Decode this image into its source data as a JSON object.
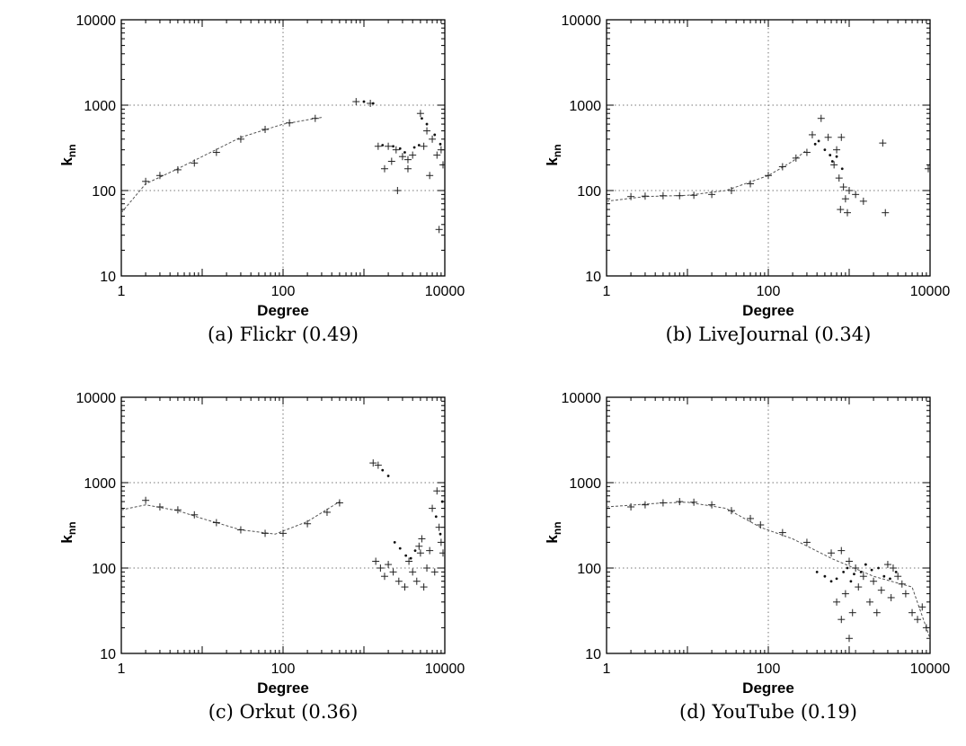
{
  "chart_data": [
    {
      "type": "scatter",
      "caption": "(a) Flickr (0.49)",
      "xlabel": "Degree",
      "ylabel_main": "k",
      "ylabel_sub": "nn",
      "xscale": "log",
      "yscale": "log",
      "xlim": [
        1,
        10000
      ],
      "ylim": [
        10,
        10000
      ],
      "xticks": [
        "1",
        "100",
        "10000"
      ],
      "yticks": [
        "10",
        "100",
        "1000",
        "10000"
      ],
      "grid": true,
      "trend": [
        [
          1,
          55
        ],
        [
          2,
          120
        ],
        [
          5,
          180
        ],
        [
          10,
          250
        ],
        [
          30,
          420
        ],
        [
          100,
          600
        ],
        [
          300,
          720
        ]
      ],
      "series": [
        {
          "marker": "plus",
          "points": [
            [
              2,
              128
            ],
            [
              3,
              150
            ],
            [
              5,
              175
            ],
            [
              8,
              210
            ],
            [
              15,
              280
            ],
            [
              30,
              400
            ],
            [
              60,
              520
            ],
            [
              120,
              620
            ],
            [
              250,
              700
            ],
            [
              800,
              1100
            ],
            [
              1200,
              1050
            ],
            [
              1500,
              330
            ],
            [
              2000,
              330
            ],
            [
              2500,
              300
            ],
            [
              3000,
              250
            ],
            [
              3500,
              230
            ],
            [
              1800,
              180
            ],
            [
              2200,
              220
            ],
            [
              2600,
              100
            ],
            [
              3500,
              180
            ],
            [
              5000,
              800
            ],
            [
              6000,
              500
            ],
            [
              7000,
              400
            ],
            [
              8000,
              260
            ],
            [
              9000,
              300
            ],
            [
              9500,
              200
            ],
            [
              8500,
              35
            ],
            [
              6500,
              150
            ],
            [
              4000,
              260
            ],
            [
              5500,
              330
            ]
          ]
        },
        {
          "marker": "dot",
          "points": [
            [
              1000,
              1100
            ],
            [
              1300,
              1050
            ],
            [
              1700,
              340
            ],
            [
              2300,
              330
            ],
            [
              2800,
              310
            ],
            [
              3200,
              280
            ],
            [
              4200,
              320
            ],
            [
              4800,
              340
            ],
            [
              5200,
              700
            ],
            [
              6000,
              600
            ],
            [
              7500,
              450
            ],
            [
              8800,
              350
            ]
          ]
        }
      ]
    },
    {
      "type": "scatter",
      "caption": "(b) LiveJournal (0.34)",
      "xlabel": "Degree",
      "ylabel_main": "k",
      "ylabel_sub": "nn",
      "xscale": "log",
      "yscale": "log",
      "xlim": [
        1,
        10000
      ],
      "ylim": [
        10,
        10000
      ],
      "xticks": [
        "1",
        "100",
        "10000"
      ],
      "yticks": [
        "10",
        "100",
        "1000",
        "10000"
      ],
      "grid": true,
      "trend": [
        [
          1,
          75
        ],
        [
          3,
          85
        ],
        [
          10,
          88
        ],
        [
          30,
          100
        ],
        [
          100,
          150
        ],
        [
          200,
          220
        ],
        [
          300,
          300
        ]
      ],
      "series": [
        {
          "marker": "plus",
          "points": [
            [
              2,
              85
            ],
            [
              3,
              86
            ],
            [
              5,
              87
            ],
            [
              8,
              87
            ],
            [
              12,
              88
            ],
            [
              20,
              90
            ],
            [
              35,
              100
            ],
            [
              60,
              120
            ],
            [
              100,
              150
            ],
            [
              150,
              190
            ],
            [
              220,
              240
            ],
            [
              300,
              280
            ],
            [
              350,
              450
            ],
            [
              450,
              700
            ],
            [
              550,
              420
            ],
            [
              650,
              200
            ],
            [
              700,
              300
            ],
            [
              800,
              420
            ],
            [
              750,
              140
            ],
            [
              850,
              110
            ],
            [
              900,
              80
            ],
            [
              1000,
              100
            ],
            [
              1200,
              90
            ],
            [
              780,
              60
            ],
            [
              950,
              55
            ],
            [
              1500,
              75
            ],
            [
              2600,
              360
            ],
            [
              2800,
              55
            ],
            [
              9500,
              180
            ]
          ]
        },
        {
          "marker": "dot",
          "points": [
            [
              380,
              350
            ],
            [
              420,
              380
            ],
            [
              500,
              300
            ],
            [
              580,
              260
            ],
            [
              620,
              220
            ],
            [
              700,
              250
            ],
            [
              820,
              180
            ]
          ]
        }
      ]
    },
    {
      "type": "scatter",
      "caption": "(c) Orkut (0.36)",
      "xlabel": "Degree",
      "ylabel_main": "k",
      "ylabel_sub": "nn",
      "xscale": "log",
      "yscale": "log",
      "xlim": [
        1,
        10000
      ],
      "ylim": [
        10,
        10000
      ],
      "xticks": [
        "1",
        "100",
        "10000"
      ],
      "yticks": [
        "10",
        "100",
        "1000",
        "10000"
      ],
      "grid": true,
      "trend": [
        [
          1,
          480
        ],
        [
          2,
          550
        ],
        [
          5,
          470
        ],
        [
          10,
          380
        ],
        [
          30,
          280
        ],
        [
          80,
          250
        ],
        [
          200,
          350
        ],
        [
          500,
          600
        ]
      ],
      "series": [
        {
          "marker": "plus",
          "points": [
            [
              2,
              620
            ],
            [
              3,
              520
            ],
            [
              5,
              480
            ],
            [
              8,
              420
            ],
            [
              15,
              340
            ],
            [
              30,
              280
            ],
            [
              60,
              255
            ],
            [
              100,
              255
            ],
            [
              200,
              330
            ],
            [
              350,
              450
            ],
            [
              500,
              580
            ],
            [
              1300,
              1700
            ],
            [
              1500,
              1600
            ],
            [
              1400,
              120
            ],
            [
              1600,
              100
            ],
            [
              1800,
              80
            ],
            [
              2000,
              110
            ],
            [
              2300,
              90
            ],
            [
              2700,
              70
            ],
            [
              3200,
              60
            ],
            [
              3600,
              120
            ],
            [
              4000,
              90
            ],
            [
              4500,
              70
            ],
            [
              5000,
              150
            ],
            [
              5500,
              60
            ],
            [
              6000,
              100
            ],
            [
              7000,
              500
            ],
            [
              8000,
              800
            ],
            [
              8500,
              300
            ],
            [
              9000,
              200
            ],
            [
              9500,
              150
            ],
            [
              7500,
              90
            ],
            [
              6500,
              160
            ],
            [
              5200,
              220
            ],
            [
              4800,
              180
            ]
          ]
        },
        {
          "marker": "dot",
          "points": [
            [
              1700,
              1400
            ],
            [
              2000,
              1200
            ],
            [
              2400,
              200
            ],
            [
              2800,
              170
            ],
            [
              3300,
              140
            ],
            [
              3800,
              130
            ],
            [
              4300,
              160
            ],
            [
              7800,
              400
            ],
            [
              8800,
              250
            ],
            [
              9300,
              600
            ]
          ]
        }
      ]
    },
    {
      "type": "scatter",
      "caption": "(d) YouTube (0.19)",
      "xlabel": "Degree",
      "ylabel_main": "k",
      "ylabel_sub": "nn",
      "xscale": "log",
      "yscale": "log",
      "xlim": [
        1,
        10000
      ],
      "ylim": [
        10,
        10000
      ],
      "xticks": [
        "1",
        "100",
        "10000"
      ],
      "yticks": [
        "10",
        "100",
        "1000",
        "10000"
      ],
      "grid": true,
      "trend": [
        [
          1,
          520
        ],
        [
          5,
          580
        ],
        [
          10,
          590
        ],
        [
          30,
          500
        ],
        [
          80,
          300
        ],
        [
          200,
          220
        ],
        [
          600,
          130
        ],
        [
          2000,
          80
        ],
        [
          6000,
          60
        ],
        [
          10000,
          15
        ]
      ],
      "series": [
        {
          "marker": "plus",
          "points": [
            [
              2,
              520
            ],
            [
              3,
              550
            ],
            [
              5,
              580
            ],
            [
              8,
              600
            ],
            [
              12,
              590
            ],
            [
              20,
              550
            ],
            [
              35,
              470
            ],
            [
              60,
              380
            ],
            [
              80,
              320
            ],
            [
              150,
              260
            ],
            [
              300,
              200
            ],
            [
              600,
              150
            ],
            [
              800,
              160
            ],
            [
              1000,
              120
            ],
            [
              1200,
              100
            ],
            [
              700,
              40
            ],
            [
              800,
              25
            ],
            [
              900,
              50
            ],
            [
              1000,
              15
            ],
            [
              1100,
              30
            ],
            [
              1300,
              60
            ],
            [
              1500,
              80
            ],
            [
              1800,
              40
            ],
            [
              2000,
              70
            ],
            [
              2500,
              55
            ],
            [
              3000,
              110
            ],
            [
              3500,
              100
            ],
            [
              4000,
              80
            ],
            [
              5000,
              50
            ],
            [
              6000,
              30
            ],
            [
              7000,
              25
            ],
            [
              8000,
              35
            ],
            [
              9000,
              20
            ],
            [
              10000,
              15
            ],
            [
              1200,
              10
            ],
            [
              2200,
              30
            ],
            [
              3300,
              45
            ],
            [
              4500,
              65
            ]
          ]
        },
        {
          "marker": "dot",
          "points": [
            [
              400,
              90
            ],
            [
              500,
              80
            ],
            [
              600,
              70
            ],
            [
              700,
              75
            ],
            [
              850,
              90
            ],
            [
              950,
              100
            ],
            [
              1050,
              70
            ],
            [
              1150,
              85
            ],
            [
              1400,
              90
            ],
            [
              1600,
              110
            ],
            [
              1900,
              95
            ],
            [
              2300,
              100
            ],
            [
              2700,
              80
            ],
            [
              3200,
              75
            ],
            [
              3800,
              90
            ]
          ]
        }
      ]
    }
  ]
}
